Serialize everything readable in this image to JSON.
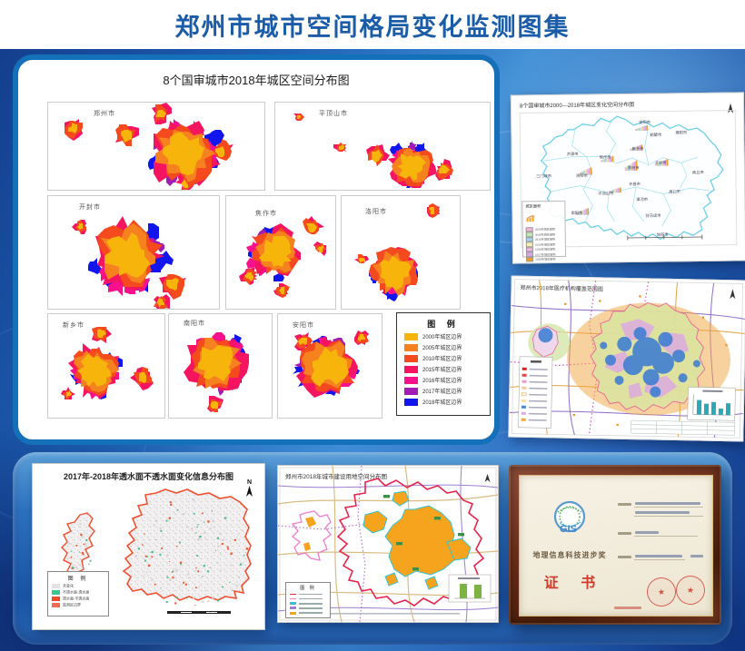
{
  "page": {
    "title": "郑州市城市空间格局变化监测图集"
  },
  "panel_cities": {
    "title": "8个国审城市2018年城区空间分布图",
    "cities": [
      "郑州市",
      "平顶山市",
      "开封市",
      "焦作市",
      "洛阳市",
      "新乡市",
      "南阳市",
      "安阳市"
    ],
    "legend": {
      "title": "图 例",
      "items": [
        {
          "label": "2000年城区边界",
          "color": "#F7B40A"
        },
        {
          "label": "2005年城区边界",
          "color": "#F5821F"
        },
        {
          "label": "2010年城区边界",
          "color": "#F5491E"
        },
        {
          "label": "2015年城区边界",
          "color": "#F5145F"
        },
        {
          "label": "2016年城区边界",
          "color": "#F8108C"
        },
        {
          "label": "2017年城区边界",
          "color": "#A21CB4"
        },
        {
          "label": "2018年城区边界",
          "color": "#1216EE"
        }
      ]
    }
  },
  "panel_change": {
    "title": "8个国审城市2000—2018年城区变化空间分布图",
    "legend_title": "城区面积",
    "legend_items": [
      {
        "label": "2000年城区面积",
        "color": "#F8B8D8"
      },
      {
        "label": "2005年城区面积",
        "color": "#C4E8B4"
      },
      {
        "label": "2010年城区面积",
        "color": "#A8D8F4"
      },
      {
        "label": "2015年城区面积",
        "color": "#F8F0B4"
      },
      {
        "label": "2016年城区面积",
        "color": "#F4B4E4"
      },
      {
        "label": "2017年城区面积",
        "color": "#D4A8E8"
      },
      {
        "label": "2018年城区面积",
        "color": "#F5A020"
      }
    ],
    "map_labels": [
      "安阳市",
      "鹤壁市",
      "濮阳市",
      "新乡市",
      "焦作市",
      "济源市",
      "三门峡市",
      "洛阳市",
      "郑州市",
      "开封市",
      "商丘市",
      "许昌市",
      "平顶山市",
      "漯河市",
      "周口市",
      "南阳市",
      "驻马店市",
      "信阳市"
    ]
  },
  "panel_medical": {
    "title": "郑州市2018年医疗机构覆盖范围图"
  },
  "panel_water": {
    "title": "2017年-2018年透水面不透水面变化信息分布图",
    "north": "N",
    "legend": {
      "title": "图 例",
      "items": [
        {
          "label": "未变化",
          "color": "#E6E2E2"
        },
        {
          "label": "不透水面-透水面",
          "color": "#35C98B"
        },
        {
          "label": "透水面-不透水面",
          "color": "#F04A28"
        },
        {
          "label": "监测区边界",
          "color": "#F26A4F"
        }
      ]
    }
  },
  "panel_landuse": {
    "title": "郑州市2018年城市建设用地空间分布图",
    "legend_title": "图 例"
  },
  "certificate": {
    "logo": "GIS",
    "award": "地理信息科技进步奖",
    "title": "证 书"
  }
}
